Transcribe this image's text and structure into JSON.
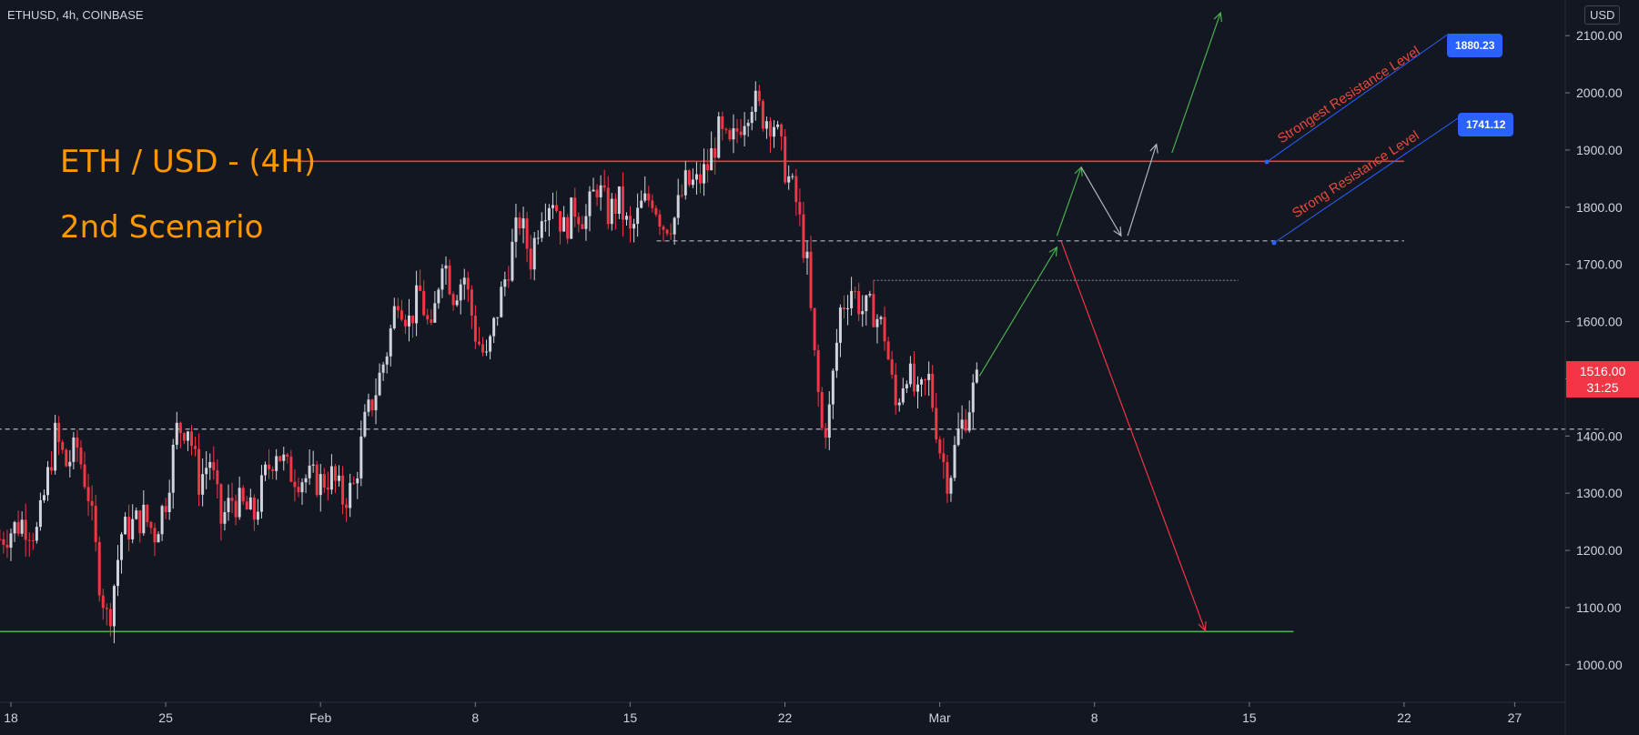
{
  "symbol_label": "ETHUSD, 4h, COINBASE",
  "title_line1": "ETH / USD - (4H)",
  "title_line2": "2nd Scenario",
  "currency": "USD",
  "last_price": "1516.00",
  "countdown": "31:25",
  "annotations": {
    "strongest_label": "Strongest Resistance Level",
    "strongest_value": "1880.23",
    "strong_label": "Strong Resistance Level",
    "strong_value": "1741.12"
  },
  "colors": {
    "background": "#131722",
    "up": "#d1d4dc",
    "down": "#f23645",
    "accent": "#ff9800",
    "tag": "#2962ff",
    "support": "#4caf50"
  },
  "chart_data": {
    "type": "candlestick",
    "y_ticks": [
      1000,
      1100,
      1200,
      1300,
      1400,
      1500,
      1600,
      1700,
      1800,
      1900,
      2000,
      2100
    ],
    "y_tick_labels": [
      "1000.00",
      "1100.00",
      "1200.00",
      "1300.00",
      "1400.00",
      "1500.00",
      "1600.00",
      "1700.00",
      "1800.00",
      "1900.00",
      "2000.00",
      "2100.00"
    ],
    "x_ticks": [
      {
        "label": "18",
        "day": 0
      },
      {
        "label": "25",
        "day": 7
      },
      {
        "label": "Feb",
        "day": 14
      },
      {
        "label": "8",
        "day": 21
      },
      {
        "label": "15",
        "day": 28
      },
      {
        "label": "22",
        "day": 35
      },
      {
        "label": "Mar",
        "day": 42
      },
      {
        "label": "8",
        "day": 49
      },
      {
        "label": "15",
        "day": 56
      },
      {
        "label": "22",
        "day": 63
      },
      {
        "label": "27",
        "day": 68
      }
    ],
    "ohlc_path": [
      [
        -0.5,
        1220
      ],
      [
        0.5,
        1250
      ],
      [
        1.2,
        1230
      ],
      [
        2,
        1400
      ],
      [
        2.5,
        1350
      ],
      [
        3,
        1380
      ],
      [
        3.5,
        1300
      ],
      [
        4,
        1150
      ],
      [
        4.4,
        1070
      ],
      [
        5,
        1230
      ],
      [
        6,
        1260
      ],
      [
        6.5,
        1230
      ],
      [
        7,
        1290
      ],
      [
        7.5,
        1410
      ],
      [
        8,
        1420
      ],
      [
        8.5,
        1320
      ],
      [
        9,
        1360
      ],
      [
        9.5,
        1250
      ],
      [
        10,
        1290
      ],
      [
        11,
        1260
      ],
      [
        11.5,
        1330
      ],
      [
        12,
        1380
      ],
      [
        12.5,
        1340
      ],
      [
        13,
        1330
      ],
      [
        14,
        1320
      ],
      [
        14.5,
        1330
      ],
      [
        15,
        1290
      ],
      [
        15.5,
        1310
      ],
      [
        16,
        1420
      ],
      [
        16.5,
        1480
      ],
      [
        17,
        1550
      ],
      [
        17.5,
        1650
      ],
      [
        18,
        1600
      ],
      [
        18.5,
        1650
      ],
      [
        19,
        1570
      ],
      [
        19.5,
        1720
      ],
      [
        20,
        1650
      ],
      [
        20.5,
        1680
      ],
      [
        21,
        1580
      ],
      [
        21.5,
        1530
      ],
      [
        22,
        1620
      ],
      [
        22.5,
        1700
      ],
      [
        23,
        1780
      ],
      [
        23.5,
        1710
      ],
      [
        24,
        1800
      ],
      [
        24.5,
        1820
      ],
      [
        25,
        1760
      ],
      [
        25.5,
        1800
      ],
      [
        26,
        1780
      ],
      [
        26.5,
        1840
      ],
      [
        27,
        1790
      ],
      [
        27.5,
        1810
      ],
      [
        28,
        1750
      ],
      [
        28.5,
        1800
      ],
      [
        29,
        1820
      ],
      [
        29.5,
        1770
      ],
      [
        30,
        1780
      ],
      [
        30.5,
        1840
      ],
      [
        31,
        1840
      ],
      [
        31.5,
        1870
      ],
      [
        32,
        1930
      ],
      [
        32.5,
        1900
      ],
      [
        33,
        1950
      ],
      [
        33.5,
        1990
      ],
      [
        34,
        1960
      ],
      [
        34.5,
        1950
      ],
      [
        35,
        1870
      ],
      [
        35.5,
        1810
      ],
      [
        36,
        1700
      ],
      [
        36.3,
        1550
      ],
      [
        36.7,
        1400
      ],
      [
        37,
        1440
      ],
      [
        37.5,
        1620
      ],
      [
        38,
        1660
      ],
      [
        38.5,
        1620
      ],
      [
        39,
        1620
      ],
      [
        39.5,
        1580
      ],
      [
        40,
        1450
      ],
      [
        40.5,
        1520
      ],
      [
        41,
        1460
      ],
      [
        41.5,
        1500
      ],
      [
        42,
        1380
      ],
      [
        42.4,
        1320
      ],
      [
        42.8,
        1400
      ],
      [
        43.3,
        1450
      ],
      [
        43.8,
        1520
      ]
    ],
    "last_close": 1516,
    "levels": [
      {
        "price": 1880.23,
        "style": "solid",
        "color": "#f23645",
        "day_from": 12.8,
        "day_to": 63
      },
      {
        "price": 1741.12,
        "style": "dashed",
        "color": "#b2b5be",
        "day_from": 29.2,
        "day_to": 63
      },
      {
        "price": 1672,
        "style": "dotted",
        "color": "#787b86",
        "day_from": 39,
        "day_to": 55.5
      },
      {
        "price": 1412,
        "style": "dashed",
        "color": "#b2b5be",
        "day_from": -1,
        "day_to": 72
      },
      {
        "price": 1058,
        "style": "solid",
        "color": "#4caf50",
        "day_from": -1,
        "day_to": 58
      }
    ],
    "scenario_paths": [
      {
        "color": "#4caf50",
        "points": [
          [
            43.8,
            1505
          ],
          [
            47.3,
            1730
          ]
        ]
      },
      {
        "color": "#4caf50",
        "points": [
          [
            47.3,
            1750
          ],
          [
            48.4,
            1870
          ]
        ]
      },
      {
        "color": "#b2b5be",
        "points": [
          [
            48.4,
            1870
          ],
          [
            50.2,
            1750
          ]
        ]
      },
      {
        "color": "#b2b5be",
        "points": [
          [
            50.5,
            1750
          ],
          [
            51.8,
            1910
          ]
        ]
      },
      {
        "color": "#4caf50",
        "points": [
          [
            52.5,
            1895
          ],
          [
            54.7,
            2140
          ]
        ]
      },
      {
        "color": "#f23645",
        "points": [
          [
            47.5,
            1740
          ],
          [
            54,
            1060
          ]
        ]
      }
    ]
  }
}
